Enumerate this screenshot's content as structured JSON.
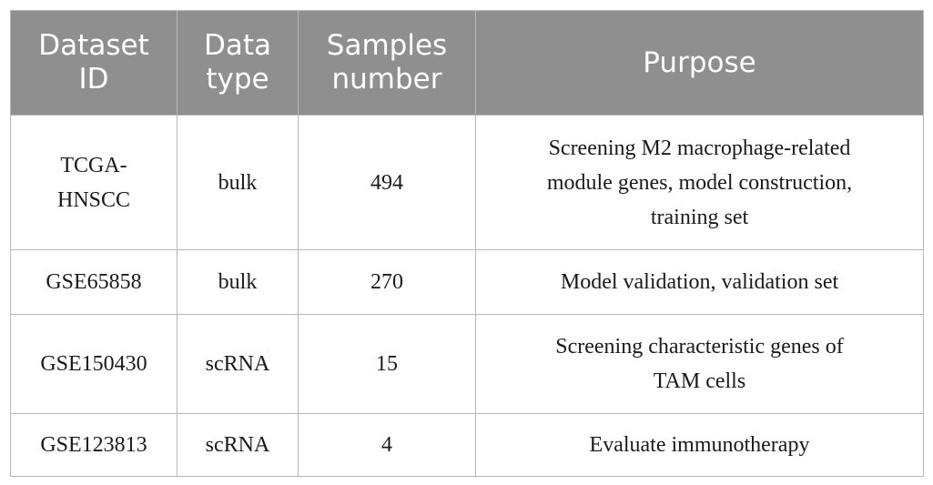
{
  "table": {
    "headers": [
      [
        "Dataset",
        "ID"
      ],
      [
        "Data",
        "type"
      ],
      [
        "Samples",
        "number"
      ],
      [
        "Purpose"
      ]
    ],
    "rows": [
      {
        "dataset_id": [
          "TCGA-",
          "HNSCC"
        ],
        "data_type": "bulk",
        "samples": "494",
        "purpose": [
          "Screening M2 macrophage-related",
          "module genes, model construction,",
          "training set"
        ]
      },
      {
        "dataset_id": [
          "GSE65858"
        ],
        "data_type": "bulk",
        "samples": "270",
        "purpose": [
          "Model validation, validation set"
        ]
      },
      {
        "dataset_id": [
          "GSE150430"
        ],
        "data_type": "scRNA",
        "samples": "15",
        "purpose": [
          "Screening characteristic genes of",
          "TAM cells"
        ]
      },
      {
        "dataset_id": [
          "GSE123813"
        ],
        "data_type": "scRNA",
        "samples": "4",
        "purpose": [
          "Evaluate immunotherapy"
        ]
      }
    ]
  }
}
